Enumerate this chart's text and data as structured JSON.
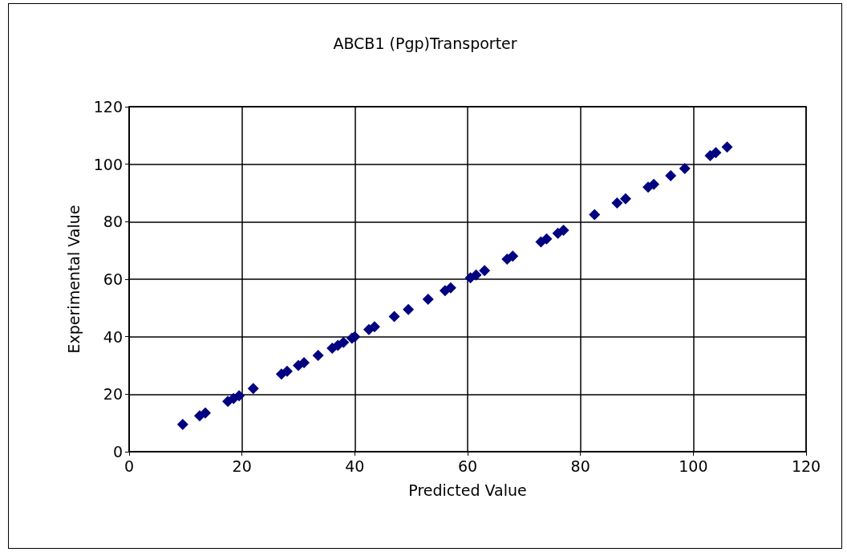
{
  "chart_data": {
    "type": "scatter",
    "title": "ABCB1 (Pgp)Transporter",
    "xlabel": "Predicted Value",
    "ylabel": "Experimental Value",
    "x": [
      9.5,
      12.5,
      13.5,
      17.5,
      18.5,
      19.5,
      22,
      27,
      28,
      30,
      31,
      33.5,
      36,
      37,
      38,
      39.5,
      40,
      42.5,
      43.5,
      47,
      49.5,
      53,
      56,
      57,
      60.5,
      61.5,
      63,
      67,
      68,
      73,
      74,
      76,
      77,
      82.5,
      86.5,
      88,
      92,
      93,
      96,
      98.5,
      103,
      104,
      106
    ],
    "series": [
      {
        "color": "#000080",
        "values": [
          9.5,
          12.5,
          13.5,
          17.5,
          18.5,
          19.5,
          22,
          27,
          28,
          30,
          31,
          33.5,
          36,
          37,
          38,
          39.5,
          40,
          42.5,
          43.5,
          47,
          49.5,
          53,
          56,
          57,
          60.5,
          61.5,
          63,
          67,
          68,
          73,
          74,
          76,
          77,
          82.5,
          86.5,
          88,
          92,
          93,
          96,
          98.5,
          103,
          104,
          106
        ]
      }
    ],
    "xlim": [
      0,
      120
    ],
    "xticks": [
      0,
      20,
      40,
      60,
      80,
      100,
      120
    ],
    "ylim": [
      0,
      120
    ],
    "yticks": [
      0,
      20,
      40,
      60,
      80,
      100,
      120
    ],
    "grid": true,
    "marker": "diamond"
  }
}
